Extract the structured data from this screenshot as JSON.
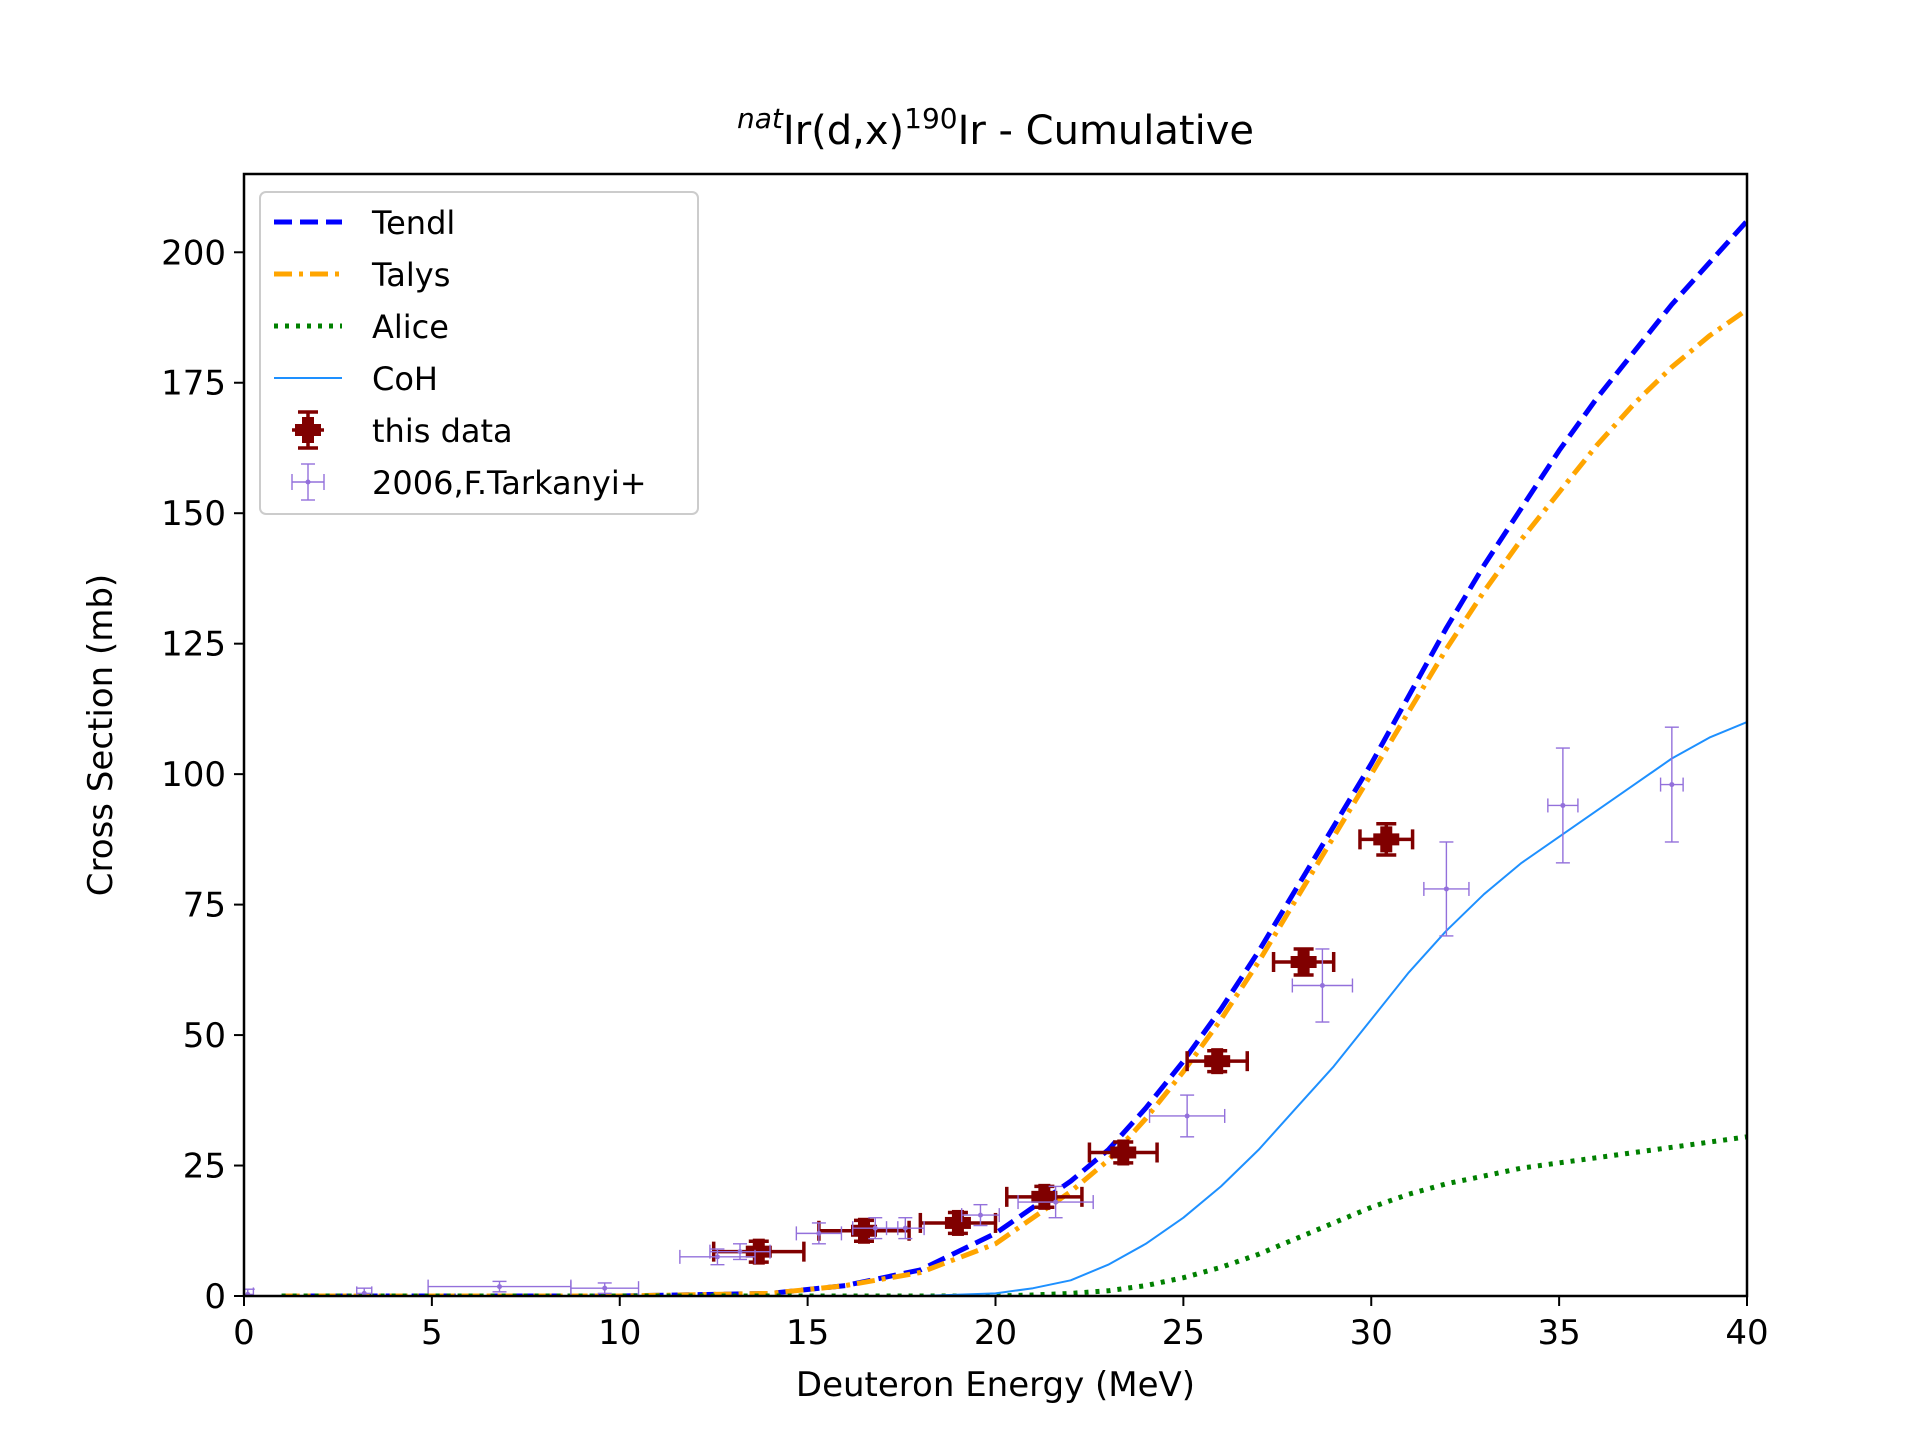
{
  "chart_data": {
    "type": "line",
    "title_prefix": "nat",
    "title_target": "Ir(d,x)",
    "title_mass": "190",
    "title_suffix": "Ir - Cumulative",
    "xlabel": "Deuteron Energy (MeV)",
    "ylabel": "Cross Section (mb)",
    "xlim": [
      0,
      40
    ],
    "ylim": [
      0,
      215
    ],
    "xticks": [
      0,
      5,
      10,
      15,
      20,
      25,
      30,
      35,
      40
    ],
    "yticks": [
      0,
      25,
      50,
      75,
      100,
      125,
      150,
      175,
      200
    ],
    "grid": false,
    "legend_position": "top-left",
    "series": [
      {
        "name": "Tendl",
        "kind": "line",
        "color": "#0000ff",
        "style": "dashed",
        "x": [
          1,
          10,
          14,
          16,
          18,
          20,
          21,
          22,
          23,
          24,
          25,
          26,
          27,
          28,
          29,
          30,
          31,
          32,
          33,
          34,
          35,
          36,
          37,
          38,
          39,
          40
        ],
        "y": [
          0,
          0,
          0.5,
          2,
          5,
          12,
          17,
          22,
          28,
          36,
          45,
          55,
          66,
          78,
          90,
          102,
          115,
          128,
          140,
          151,
          162,
          172,
          181,
          190,
          198,
          206
        ]
      },
      {
        "name": "Talys",
        "kind": "line",
        "color": "#ffa500",
        "style": "dashdot",
        "x": [
          1,
          10,
          14,
          16,
          18,
          20,
          21,
          22,
          23,
          24,
          25,
          26,
          27,
          28,
          29,
          30,
          31,
          32,
          33,
          34,
          35,
          36,
          37,
          38,
          39,
          40
        ],
        "y": [
          0,
          0,
          0.5,
          2,
          4.5,
          10,
          15,
          20,
          26,
          34,
          43,
          53,
          64,
          76,
          88,
          100,
          112,
          124,
          135,
          145,
          154,
          163,
          171,
          178,
          184,
          189
        ]
      },
      {
        "name": "Alice",
        "kind": "line",
        "color": "#008000",
        "style": "dotted",
        "x": [
          1,
          20,
          21,
          22,
          23,
          24,
          25,
          26,
          27,
          28,
          29,
          30,
          31,
          32,
          33,
          34,
          35,
          36,
          37,
          38,
          39,
          40
        ],
        "y": [
          0,
          0,
          0.2,
          0.5,
          1,
          2,
          3.5,
          5.5,
          8,
          11,
          14,
          17,
          19.5,
          21.5,
          23,
          24.5,
          25.5,
          26.5,
          27.5,
          28.5,
          29.5,
          30.5
        ]
      },
      {
        "name": "CoH",
        "kind": "line",
        "color": "#1e90ff",
        "style": "solid",
        "x": [
          1,
          18,
          20,
          21,
          22,
          23,
          24,
          25,
          26,
          27,
          28,
          29,
          30,
          31,
          32,
          33,
          34,
          35,
          36,
          37,
          38,
          39,
          40
        ],
        "y": [
          0,
          0,
          0.5,
          1.5,
          3,
          6,
          10,
          15,
          21,
          28,
          36,
          44,
          53,
          62,
          70,
          77,
          83,
          88,
          93,
          98,
          103,
          107,
          110
        ]
      },
      {
        "name": "this data",
        "kind": "errorbar",
        "color": "#800000",
        "points": [
          {
            "x": 13.7,
            "y": 8.5,
            "xerr": 1.2,
            "yerr": 2
          },
          {
            "x": 16.5,
            "y": 12.5,
            "xerr": 1.2,
            "yerr": 2
          },
          {
            "x": 19.0,
            "y": 14,
            "xerr": 1.0,
            "yerr": 2
          },
          {
            "x": 21.3,
            "y": 19,
            "xerr": 1.0,
            "yerr": 2
          },
          {
            "x": 23.4,
            "y": 27.5,
            "xerr": 0.9,
            "yerr": 2
          },
          {
            "x": 25.9,
            "y": 45,
            "xerr": 0.8,
            "yerr": 2
          },
          {
            "x": 28.2,
            "y": 64,
            "xerr": 0.8,
            "yerr": 2.5
          },
          {
            "x": 30.4,
            "y": 87.5,
            "xerr": 0.7,
            "yerr": 3
          }
        ]
      },
      {
        "name": "2006,F.Tarkanyi+",
        "kind": "errorbar",
        "color": "#9370db",
        "points": [
          {
            "x": 0.1,
            "y": 0.3,
            "xerr": 0.15,
            "yerr": 1
          },
          {
            "x": 3.2,
            "y": 0.5,
            "xerr": 0.2,
            "yerr": 1
          },
          {
            "x": 6.8,
            "y": 1.8,
            "xerr": 1.9,
            "yerr": 1
          },
          {
            "x": 9.6,
            "y": 1.5,
            "xerr": 0.9,
            "yerr": 1
          },
          {
            "x": 12.6,
            "y": 7.5,
            "xerr": 1.0,
            "yerr": 1.5
          },
          {
            "x": 13.2,
            "y": 8.5,
            "xerr": 0.8,
            "yerr": 1.5
          },
          {
            "x": 15.3,
            "y": 12,
            "xerr": 0.6,
            "yerr": 2
          },
          {
            "x": 16.8,
            "y": 13,
            "xerr": 0.6,
            "yerr": 2
          },
          {
            "x": 17.6,
            "y": 13,
            "xerr": 0.5,
            "yerr": 2
          },
          {
            "x": 19.6,
            "y": 15.5,
            "xerr": 0.5,
            "yerr": 2
          },
          {
            "x": 21.6,
            "y": 18,
            "xerr": 1.0,
            "yerr": 3
          },
          {
            "x": 25.1,
            "y": 34.5,
            "xerr": 1.0,
            "yerr": 4
          },
          {
            "x": 28.7,
            "y": 59.5,
            "xerr": 0.8,
            "yerr": 7
          },
          {
            "x": 32.0,
            "y": 78,
            "xerr": 0.6,
            "yerr": 9
          },
          {
            "x": 35.1,
            "y": 94,
            "xerr": 0.4,
            "yerr": 11
          },
          {
            "x": 38.0,
            "y": 98,
            "xerr": 0.3,
            "yerr": 11
          }
        ]
      }
    ]
  }
}
